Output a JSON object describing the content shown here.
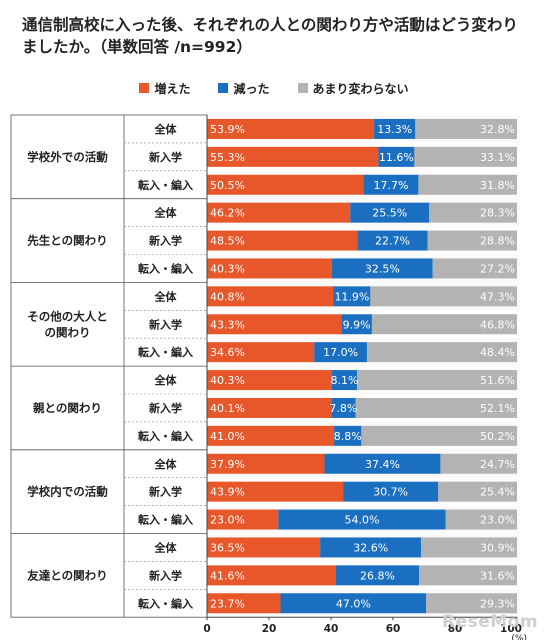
{
  "title": "通信制高校に入った後、それぞれの人との関わり方や活動はどう変わりましたか。（単数回答 /n=992）",
  "watermark": "ReseMom",
  "colors": {
    "increased": "#e8572a",
    "decreased": "#1b6fc1",
    "unchanged": "#b3b3b3",
    "band": "#f2f2f2"
  },
  "chart_data": {
    "type": "bar",
    "orientation": "horizontal",
    "stacked": true,
    "unit": "%",
    "xlim": [
      0,
      100
    ],
    "xticks": [
      "0",
      "20",
      "40",
      "60",
      "80",
      "100"
    ],
    "xunit_label": "(%)",
    "legend": {
      "placement": "top-center",
      "items": [
        "増えた",
        "減った",
        "あまり変わらない"
      ]
    },
    "series_names": [
      "増えた",
      "減った",
      "あまり変わらない"
    ],
    "groups": [
      {
        "name": "学校外での活動",
        "rows": [
          {
            "label": "全体",
            "values": [
              53.9,
              13.3,
              32.8
            ],
            "labels": [
              "53.9%",
              "13.3%",
              "32.8%"
            ]
          },
          {
            "label": "新入学",
            "values": [
              55.3,
              11.6,
              33.1
            ],
            "labels": [
              "55.3%",
              "11.6%",
              "33.1%"
            ]
          },
          {
            "label": "転入・編入",
            "values": [
              50.5,
              17.7,
              31.8
            ],
            "labels": [
              "50.5%",
              "17.7%",
              "31.8%"
            ]
          }
        ]
      },
      {
        "name": "先生との関わり",
        "rows": [
          {
            "label": "全体",
            "values": [
              46.2,
              25.5,
              28.3
            ],
            "labels": [
              "46.2%",
              "25.5%",
              "28.3%"
            ]
          },
          {
            "label": "新入学",
            "values": [
              48.5,
              22.7,
              28.8
            ],
            "labels": [
              "48.5%",
              "22.7%",
              "28.8%"
            ]
          },
          {
            "label": "転入・編入",
            "values": [
              40.3,
              32.5,
              27.2
            ],
            "labels": [
              "40.3%",
              "32.5%",
              "27.2%"
            ]
          }
        ]
      },
      {
        "name": "その他の大人との関わり",
        "name_lines": [
          "その他の大人と",
          "の関わり"
        ],
        "rows": [
          {
            "label": "全体",
            "values": [
              40.8,
              11.9,
              47.3
            ],
            "labels": [
              "40.8%",
              "11.9%",
              "47.3%"
            ]
          },
          {
            "label": "新入学",
            "values": [
              43.3,
              9.9,
              46.8
            ],
            "labels": [
              "43.3%",
              "9.9%",
              "46.8%"
            ]
          },
          {
            "label": "転入・編入",
            "values": [
              34.6,
              17.0,
              48.4
            ],
            "labels": [
              "34.6%",
              "17.0%",
              "48.4%"
            ]
          }
        ]
      },
      {
        "name": "親との関わり",
        "rows": [
          {
            "label": "全体",
            "values": [
              40.3,
              8.1,
              51.6
            ],
            "labels": [
              "40.3%",
              "8.1%",
              "51.6%"
            ]
          },
          {
            "label": "新入学",
            "values": [
              40.1,
              7.8,
              52.1
            ],
            "labels": [
              "40.1%",
              "7.8%",
              "52.1%"
            ]
          },
          {
            "label": "転入・編入",
            "values": [
              41.0,
              8.8,
              50.2
            ],
            "labels": [
              "41.0%",
              "8.8%",
              "50.2%"
            ]
          }
        ]
      },
      {
        "name": "学校内での活動",
        "rows": [
          {
            "label": "全体",
            "values": [
              37.9,
              37.4,
              24.7
            ],
            "labels": [
              "37.9%",
              "37.4%",
              "24.7%"
            ]
          },
          {
            "label": "新入学",
            "values": [
              43.9,
              30.7,
              25.4
            ],
            "labels": [
              "43.9%",
              "30.7%",
              "25.4%"
            ]
          },
          {
            "label": "転入・編入",
            "values": [
              23.0,
              54.0,
              23.0
            ],
            "labels": [
              "23.0%",
              "54.0%",
              "23.0%"
            ]
          }
        ]
      },
      {
        "name": "友達との関わり",
        "rows": [
          {
            "label": "全体",
            "values": [
              36.5,
              32.6,
              30.9
            ],
            "labels": [
              "36.5%",
              "32.6%",
              "30.9%"
            ]
          },
          {
            "label": "新入学",
            "values": [
              41.6,
              26.8,
              31.6
            ],
            "labels": [
              "41.6%",
              "26.8%",
              "31.6%"
            ]
          },
          {
            "label": "転入・編入",
            "values": [
              23.7,
              47.0,
              29.3
            ],
            "labels": [
              "23.7%",
              "47.0%",
              "29.3%"
            ]
          }
        ]
      }
    ]
  }
}
